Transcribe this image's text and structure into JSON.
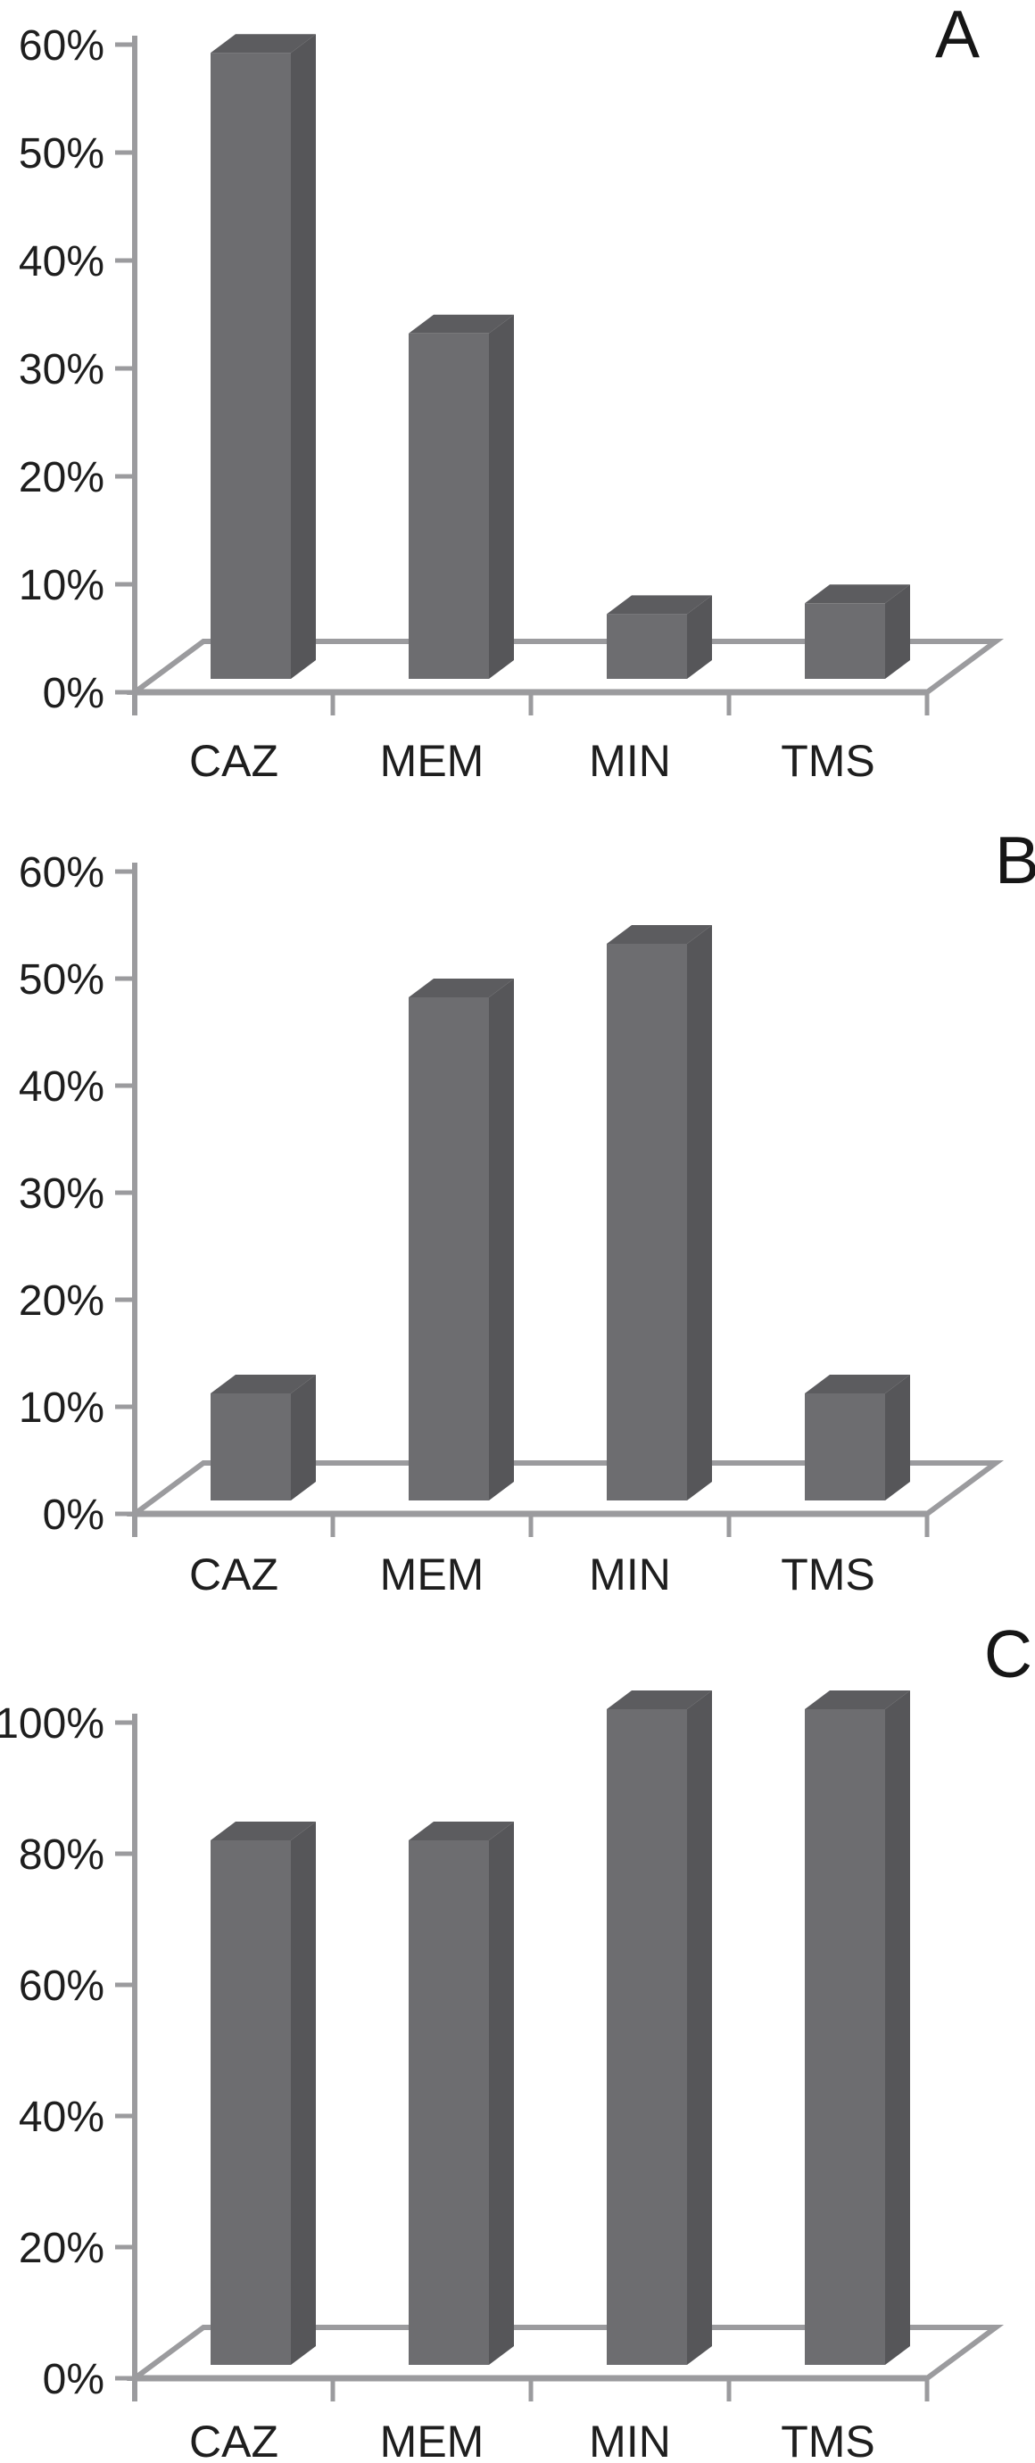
{
  "figure": {
    "description": "Three stacked 3D-style grey column charts labelled A, B and C, each showing percentage values for four antibiotic categories",
    "panel_labels": [
      "A",
      "B",
      "C"
    ]
  },
  "colors": {
    "background": "#ffffff",
    "bar_front": "#6d6d70",
    "bar_top": "#5c5c5f",
    "bar_side": "#565659",
    "axis": "#9b9b9e",
    "text": "#1e1e1e"
  },
  "chart_data": [
    {
      "type": "bar",
      "style": "3d-column",
      "panel_label": "A",
      "title": "",
      "xlabel": "",
      "ylabel": "",
      "categories": [
        "CAZ",
        "MEM",
        "MIN",
        "TMS"
      ],
      "values": [
        58,
        32,
        6,
        7
      ],
      "unit": "%",
      "ylim": [
        0,
        60
      ],
      "ytick_step": 10,
      "ytick_labels": [
        "0%",
        "10%",
        "20%",
        "30%",
        "40%",
        "50%",
        "60%"
      ],
      "grid": false,
      "legend": "none"
    },
    {
      "type": "bar",
      "style": "3d-column",
      "panel_label": "B",
      "title": "",
      "xlabel": "",
      "ylabel": "",
      "categories": [
        "CAZ",
        "MEM",
        "MIN",
        "TMS"
      ],
      "values": [
        10,
        47,
        52,
        10
      ],
      "unit": "%",
      "ylim": [
        0,
        60
      ],
      "ytick_step": 10,
      "ytick_labels": [
        "0%",
        "10%",
        "20%",
        "30%",
        "40%",
        "50%",
        "60%"
      ],
      "grid": false,
      "legend": "none"
    },
    {
      "type": "bar",
      "style": "3d-column",
      "panel_label": "C",
      "title": "",
      "xlabel": "",
      "ylabel": "",
      "categories": [
        "CAZ",
        "MEM",
        "MIN",
        "TMS"
      ],
      "values": [
        80,
        80,
        100,
        100
      ],
      "unit": "%",
      "ylim": [
        0,
        100
      ],
      "ytick_step": 20,
      "ytick_labels": [
        "0%",
        "20%",
        "40%",
        "60%",
        "80%",
        "100%"
      ],
      "grid": false,
      "legend": "none"
    }
  ]
}
